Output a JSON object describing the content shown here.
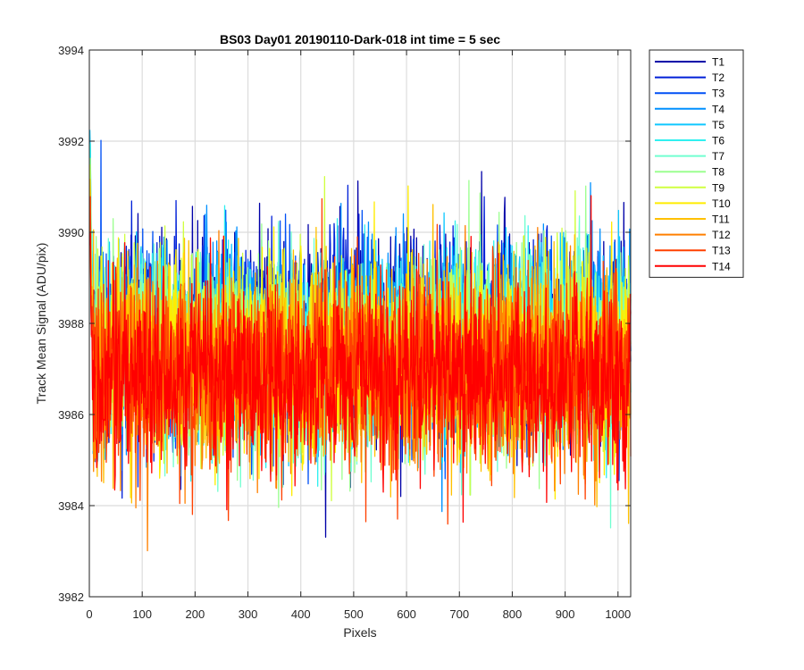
{
  "chart_data": {
    "type": "line",
    "title": "BS03 Day01 20190110-Dark-018 int time = 5 sec",
    "xlabel": "Pixels",
    "ylabel": "Track Mean Signal (ADU/pix)",
    "xlim": [
      0,
      1024
    ],
    "ylim": [
      3982,
      3994
    ],
    "x_ticks": [
      0,
      100,
      200,
      300,
      400,
      500,
      600,
      700,
      800,
      900,
      1000
    ],
    "y_ticks": [
      3982,
      3984,
      3986,
      3988,
      3990,
      3992,
      3994
    ],
    "grid": true,
    "legend_position": "outside-right-top",
    "x_points": 1024,
    "series": [
      {
        "name": "T1",
        "color": "#0000a8",
        "mean": 3987.7,
        "std": 1.1,
        "start": 3990.8
      },
      {
        "name": "T2",
        "color": "#0020d8",
        "mean": 3987.7,
        "std": 1.1,
        "start": 3991.0
      },
      {
        "name": "T3",
        "color": "#0050f5",
        "mean": 3987.6,
        "std": 1.05,
        "start": 3991.2
      },
      {
        "name": "T4",
        "color": "#0090ff",
        "mean": 3987.6,
        "std": 1.05,
        "start": 3991.5
      },
      {
        "name": "T5",
        "color": "#10c8ff",
        "mean": 3987.6,
        "std": 1.05,
        "start": 3992.4
      },
      {
        "name": "T6",
        "color": "#30f0f0",
        "mean": 3987.5,
        "std": 1.05,
        "start": 3992.2
      },
      {
        "name": "T7",
        "color": "#70ffd0",
        "mean": 3987.4,
        "std": 1.05,
        "start": 3991.8
      },
      {
        "name": "T8",
        "color": "#9cff90",
        "mean": 3987.4,
        "std": 1.05,
        "start": 3991.5
      },
      {
        "name": "T9",
        "color": "#d0ff40",
        "mean": 3987.3,
        "std": 1.05,
        "start": 3991.2
      },
      {
        "name": "T10",
        "color": "#ffec00",
        "mean": 3987.2,
        "std": 1.05,
        "start": 3991.0
      },
      {
        "name": "T11",
        "color": "#ffc000",
        "mean": 3987.1,
        "std": 1.05,
        "start": 3990.8
      },
      {
        "name": "T12",
        "color": "#ff8000",
        "mean": 3987.0,
        "std": 1.05,
        "start": 3990.5
      },
      {
        "name": "T13",
        "color": "#ff4000",
        "mean": 3986.9,
        "std": 1.05,
        "start": 3990.3
      },
      {
        "name": "T14",
        "color": "#ff0000",
        "mean": 3986.8,
        "std": 1.0,
        "start": 3990.0
      }
    ]
  }
}
